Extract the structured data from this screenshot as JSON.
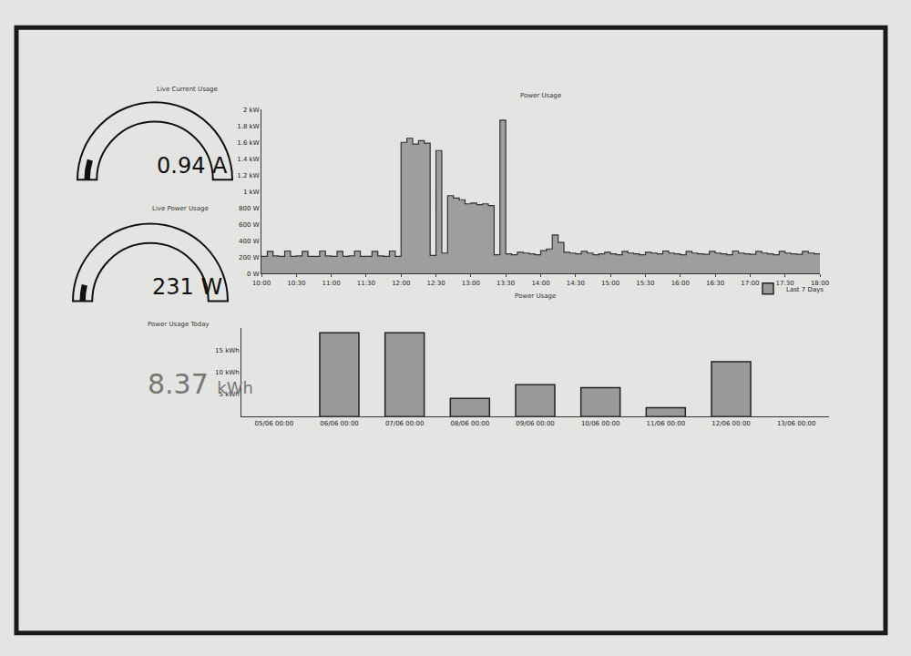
{
  "chart_data": [
    {
      "type": "gauge",
      "title": "Live Current Usage",
      "values": [
        0.94
      ],
      "value_labels": [
        "0.94 A"
      ],
      "ylim": [
        0,
        10
      ],
      "tick_labels": false,
      "color": "#111111"
    },
    {
      "type": "gauge",
      "title": "Live Power Usage",
      "values": [
        231
      ],
      "value_labels": [
        "231 W"
      ],
      "ylim": [
        0,
        3000
      ],
      "tick_labels": false,
      "color": "#111111"
    },
    {
      "type": "number",
      "title": "Power Usage Today",
      "values": [
        8.37
      ],
      "value_labels": [
        "8.37 kWh"
      ],
      "color": "#777777"
    },
    {
      "type": "area",
      "title": "Power Usage",
      "color": "#333333",
      "grid": false,
      "categories": [
        "10:00",
        null,
        null,
        null,
        null,
        null,
        "10:30",
        null,
        null,
        null,
        null,
        null,
        "11:00",
        null,
        null,
        null,
        null,
        null,
        "11:30",
        null,
        null,
        null,
        null,
        null,
        "12:00",
        null,
        null,
        null,
        null,
        null,
        "12:30",
        null,
        null,
        null,
        null,
        null,
        "13:00",
        null,
        null,
        null,
        null,
        null,
        "13:30",
        null,
        null,
        null,
        null,
        null,
        "14:00",
        null,
        null,
        null,
        null,
        null,
        "14:30",
        null,
        null,
        null,
        null,
        null,
        "15:00",
        null,
        null,
        null,
        null,
        null,
        "15:30",
        null,
        null,
        null,
        null,
        null,
        "16:00",
        null,
        null,
        null,
        null,
        null,
        "16:30",
        null,
        null,
        null,
        null,
        null,
        "17:00",
        null,
        null,
        null,
        null,
        null,
        "17:30",
        null,
        null,
        null,
        null,
        null,
        "18:00"
      ],
      "values": [
        210,
        270,
        215,
        210,
        275,
        210,
        215,
        270,
        210,
        210,
        275,
        215,
        210,
        270,
        210,
        215,
        275,
        210,
        210,
        270,
        215,
        210,
        275,
        210,
        1600,
        1650,
        1580,
        1620,
        1590,
        220,
        1500,
        250,
        950,
        920,
        900,
        850,
        860,
        840,
        850,
        830,
        230,
        1870,
        240,
        230,
        260,
        250,
        240,
        230,
        280,
        300,
        470,
        380,
        260,
        250,
        240,
        270,
        250,
        230,
        240,
        260,
        240,
        230,
        270,
        250,
        240,
        230,
        260,
        250,
        240,
        275,
        250,
        240,
        230,
        270,
        250,
        240,
        235,
        270,
        250,
        240,
        230,
        275,
        250,
        240,
        235,
        270,
        250,
        240,
        230,
        270,
        250,
        240,
        235,
        270,
        250,
        240,
        230
      ],
      "ylim": [
        0,
        2000
      ],
      "yticks": [
        {
          "value": 0,
          "label": "0 W"
        },
        {
          "value": 200,
          "label": "200 W"
        },
        {
          "value": 400,
          "label": "400 W"
        },
        {
          "value": 600,
          "label": "600 W"
        },
        {
          "value": 800,
          "label": "800 W"
        },
        {
          "value": 1000,
          "label": "1 kW"
        },
        {
          "value": 1200,
          "label": "1.2 kW"
        },
        {
          "value": 1400,
          "label": "1.4 kW"
        },
        {
          "value": 1600,
          "label": "1.6 kW"
        },
        {
          "value": 1800,
          "label": "1.8 kW"
        },
        {
          "value": 2000,
          "label": "2 kW"
        }
      ]
    },
    {
      "type": "bar",
      "title": "Power Usage",
      "grid": false,
      "legend": "top-right",
      "categories": [
        "05/06 00:00",
        "06/06 00:00",
        "07/06 00:00",
        "08/06 00:00",
        "09/06 00:00",
        "10/06 00:00",
        "11/06 00:00",
        "12/06 00:00",
        "13/06 00:00"
      ],
      "series": [
        {
          "name": "Last 7 Days",
          "color": "#9a9a9a",
          "values": [
            null,
            18.9,
            18.9,
            4.1,
            7.2,
            6.5,
            2.0,
            12.4,
            null
          ]
        }
      ],
      "ylim": [
        0,
        20
      ],
      "yticks": [
        {
          "value": 5,
          "label": "5 kWh"
        },
        {
          "value": 10,
          "label": "10 kWh"
        },
        {
          "value": 15,
          "label": "15 kWh"
        }
      ]
    }
  ]
}
